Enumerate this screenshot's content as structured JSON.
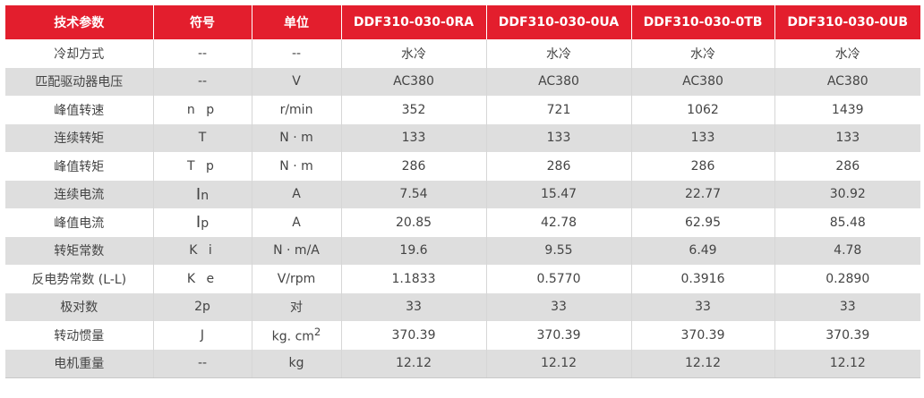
{
  "headers": [
    "技术参数",
    "符号",
    "单位",
    "DDF310-030-0RA",
    "DDF310-030-0UA",
    "DDF310-030-0TB",
    "DDF310-030-0UB"
  ],
  "rows": [
    {
      "param": "冷却方式",
      "symbol": "--",
      "unit": "--",
      "values": [
        "水冷",
        "水冷",
        "水冷",
        "水冷"
      ]
    },
    {
      "param": "匹配驱动器电压",
      "symbol": "--",
      "unit": "V",
      "values": [
        "AC380",
        "AC380",
        "AC380",
        "AC380"
      ]
    },
    {
      "param": "峰值转速",
      "symbol": "n p",
      "unit": "r/min",
      "values": [
        "352",
        "721",
        "1062",
        "1439"
      ]
    },
    {
      "param": "连续转矩",
      "symbol": "T",
      "unit": "N · m",
      "values": [
        "133",
        "133",
        "133",
        "133"
      ]
    },
    {
      "param": "峰值转矩",
      "symbol": "T p",
      "unit": "N · m",
      "values": [
        "286",
        "286",
        "286",
        "286"
      ]
    },
    {
      "param": "连续电流",
      "symbol_main": "I",
      "symbol_sub": "n",
      "unit": "A",
      "values": [
        "7.54",
        "15.47",
        "22.77",
        "30.92"
      ]
    },
    {
      "param": "峰值电流",
      "symbol_main": "I",
      "symbol_sub": "p",
      "unit": "A",
      "values": [
        "20.85",
        "42.78",
        "62.95",
        "85.48"
      ]
    },
    {
      "param": "转矩常数",
      "symbol": "K i",
      "unit": "N · m/A",
      "values": [
        "19.6",
        "9.55",
        "6.49",
        "4.78"
      ]
    },
    {
      "param": "反电势常数 (L-L)",
      "symbol": "K e",
      "unit": "V/rpm",
      "values": [
        "1.1833",
        "0.5770",
        "0.3916",
        "0.2890"
      ]
    },
    {
      "param": "极对数",
      "symbol": "2p",
      "unit": "对",
      "values": [
        "33",
        "33",
        "33",
        "33"
      ]
    },
    {
      "param": "转动惯量",
      "symbol": "J",
      "unit_main": "kg. cm",
      "unit_sup": "2",
      "values": [
        "370.39",
        "370.39",
        "370.39",
        "370.39"
      ]
    },
    {
      "param": "电机重量",
      "symbol": "--",
      "unit": "kg",
      "values": [
        "12.12",
        "12.12",
        "12.12",
        "12.12"
      ]
    }
  ]
}
